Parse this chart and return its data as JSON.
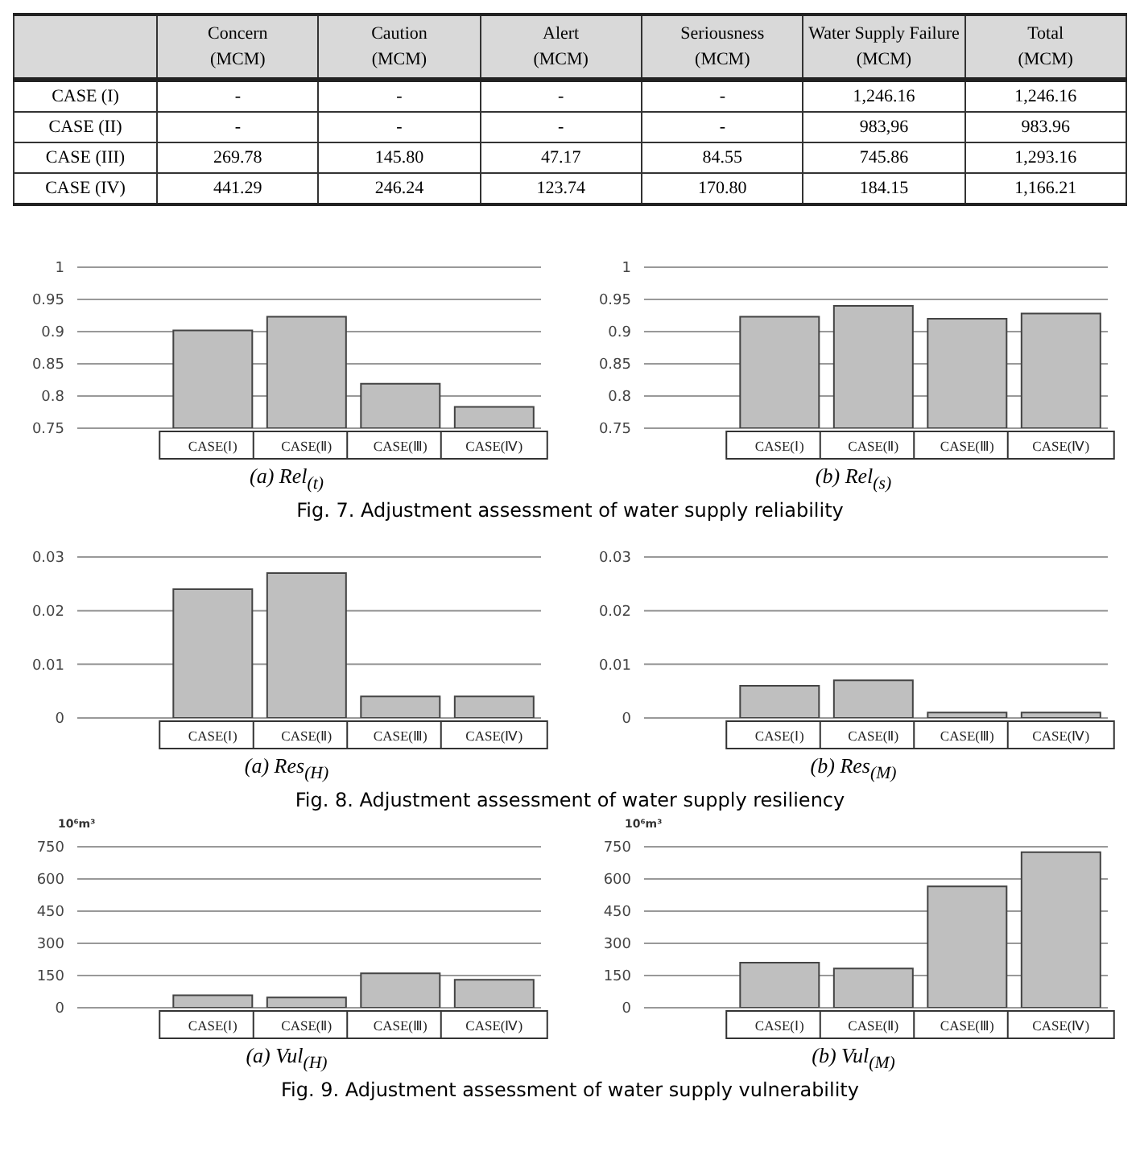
{
  "chart_data": [
    {
      "type": "other",
      "categories": [
        "Concern (MCM)",
        "Caution (MCM)",
        "Alert (MCM)",
        "Seriousness (MCM)",
        "Water Supply Failure (MCM)",
        "Total (MCM)"
      ],
      "y_categories": [
        "CASE (I)",
        "CASE (II)",
        "CASE (III)",
        "CASE (IV)"
      ],
      "cell_labels": [
        [
          "-",
          "-",
          "-",
          "-",
          "1,246.16",
          "1,246.16"
        ],
        [
          "-",
          "-",
          "-",
          "-",
          "983,96",
          "983.96"
        ],
        [
          "269.78",
          "145.80",
          "47.17",
          "84.55",
          "745.86",
          "1,293.16"
        ],
        [
          "441.29",
          "246.24",
          "123.74",
          "170.80",
          "184.15",
          "1,166.21"
        ]
      ]
    },
    {
      "type": "bar",
      "xlabel": "(a) Rel$_{(t)}$",
      "annotations": [
        "Fig. 7. Adjustment assessment of water supply reliability"
      ],
      "categories": [
        "CASE(Ⅰ)",
        "CASE(Ⅱ)",
        "CASE(Ⅲ)",
        "CASE(Ⅳ)"
      ],
      "values": [
        0.902,
        0.923,
        0.819,
        0.783
      ],
      "color": "#bfbfbf",
      "ylim": [
        0.75,
        1
      ],
      "yticks": [
        0.75,
        0.8,
        0.85,
        0.9,
        0.95,
        1
      ],
      "grid": "y"
    },
    {
      "type": "bar",
      "xlabel": "(b) Rel$_{(s)}$",
      "categories": [
        "CASE(Ⅰ)",
        "CASE(Ⅱ)",
        "CASE(Ⅲ)",
        "CASE(Ⅳ)"
      ],
      "values": [
        0.923,
        0.94,
        0.92,
        0.928
      ],
      "color": "#bfbfbf",
      "ylim": [
        0.75,
        1
      ],
      "yticks": [
        0.75,
        0.8,
        0.85,
        0.9,
        0.95,
        1
      ],
      "grid": "y"
    },
    {
      "type": "bar",
      "xlabel": "(a) Res$_{(H)}$",
      "annotations": [
        "Fig. 8. Adjustment assessment of water supply resiliency"
      ],
      "categories": [
        "CASE(Ⅰ)",
        "CASE(Ⅱ)",
        "CASE(Ⅲ)",
        "CASE(Ⅳ)"
      ],
      "values": [
        0.024,
        0.027,
        0.004,
        0.004
      ],
      "color": "#bfbfbf",
      "ylim": [
        0,
        0.03
      ],
      "yticks": [
        0,
        0.01,
        0.02,
        0.03
      ],
      "grid": "y"
    },
    {
      "type": "bar",
      "xlabel": "(b) Res$_{(M)}$",
      "categories": [
        "CASE(Ⅰ)",
        "CASE(Ⅱ)",
        "CASE(Ⅲ)",
        "CASE(Ⅳ)"
      ],
      "values": [
        0.006,
        0.007,
        0.001,
        0.001
      ],
      "color": "#bfbfbf",
      "ylim": [
        0,
        0.03
      ],
      "yticks": [
        0,
        0.01,
        0.02,
        0.03
      ],
      "grid": "y"
    },
    {
      "type": "bar",
      "xlabel": "(a) Vul$_{(H)}$",
      "ylabel": "10⁶m³",
      "annotations": [
        "Fig. 9. Adjustment assessment of water supply vulnerability"
      ],
      "categories": [
        "CASE(Ⅰ)",
        "CASE(Ⅱ)",
        "CASE(Ⅲ)",
        "CASE(Ⅳ)"
      ],
      "values": [
        58,
        48,
        160,
        130
      ],
      "color": "#bfbfbf",
      "ylim": [
        0,
        750
      ],
      "yticks": [
        0,
        150,
        300,
        450,
        600,
        750
      ],
      "grid": "y"
    },
    {
      "type": "bar",
      "xlabel": "(b) Vul$_{(M)}$",
      "ylabel": "10⁶m³",
      "categories": [
        "CASE(Ⅰ)",
        "CASE(Ⅱ)",
        "CASE(Ⅲ)",
        "CASE(Ⅳ)"
      ],
      "values": [
        210,
        183,
        565,
        725
      ],
      "color": "#bfbfbf",
      "ylim": [
        0,
        750
      ],
      "yticks": [
        0,
        150,
        300,
        450,
        600,
        750
      ],
      "grid": "y"
    }
  ]
}
